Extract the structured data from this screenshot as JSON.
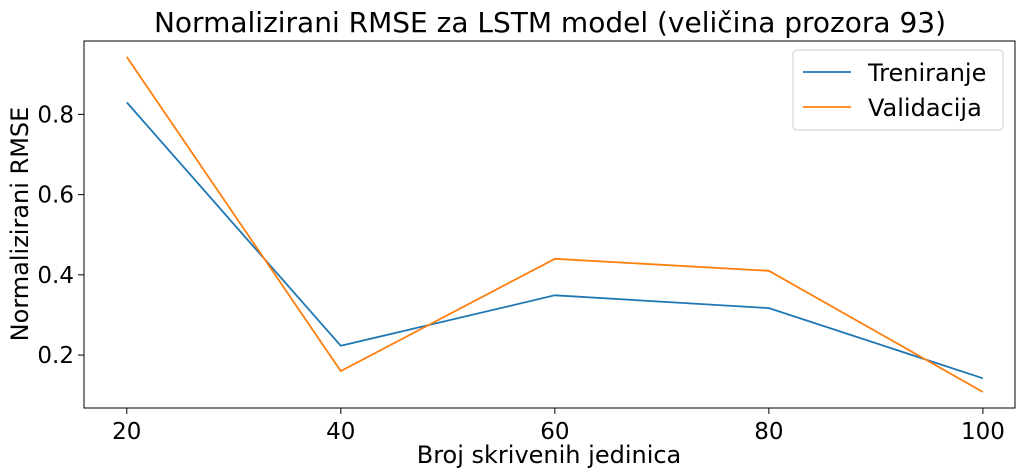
{
  "chart_data": {
    "type": "line",
    "title": "Normalizirani RMSE za LSTM model (veličina prozora 93)",
    "xlabel": "Broj skrivenih jedinica",
    "ylabel": "Normalizirani RMSE",
    "x": [
      20,
      40,
      60,
      80,
      100
    ],
    "xticks": [
      20,
      40,
      60,
      80,
      100
    ],
    "yticks": [
      0.2,
      0.4,
      0.6,
      0.8
    ],
    "xlim": [
      16,
      103
    ],
    "ylim": [
      0.068,
      0.983
    ],
    "grid": false,
    "legend_position": "top-right",
    "series": [
      {
        "name": "Treniranje",
        "color": "#1f77b4",
        "values": [
          0.83,
          0.223,
          0.349,
          0.317,
          0.142
        ]
      },
      {
        "name": "Validacija",
        "color": "#ff7f0e",
        "values": [
          0.943,
          0.16,
          0.44,
          0.41,
          0.108
        ]
      }
    ]
  }
}
